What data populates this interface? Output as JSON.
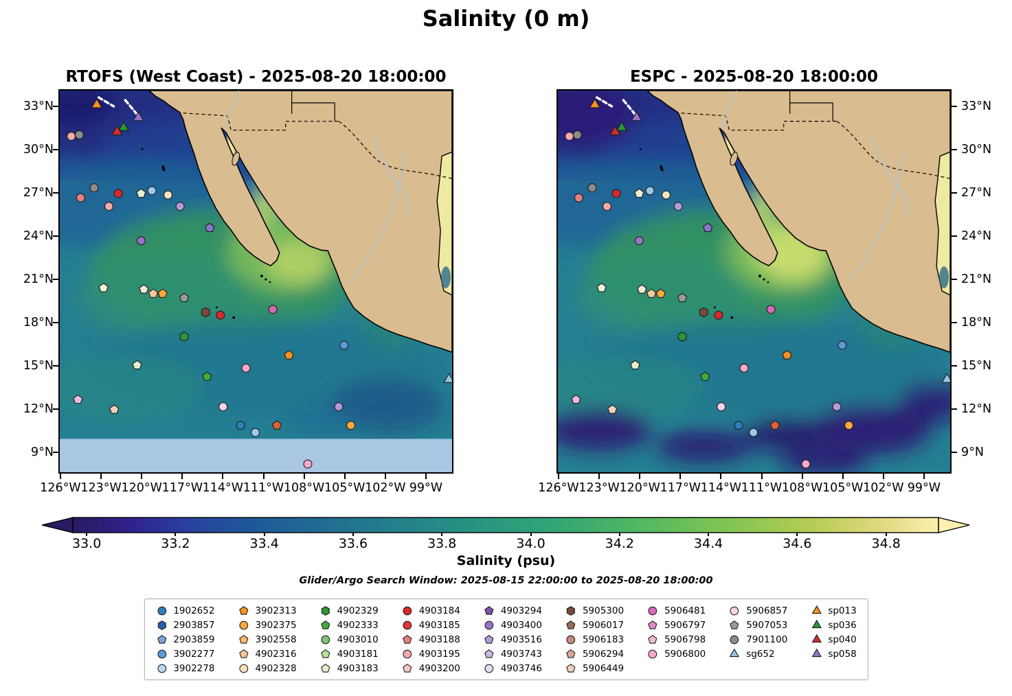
{
  "title": "Salinity (0 m)",
  "panels": [
    {
      "model": "RTOFS",
      "title": "RTOFS (West Coast) - 2025-08-20 18:00:00"
    },
    {
      "model": "ESPC",
      "title": "ESPC - 2025-08-20 18:00:00"
    }
  ],
  "subtitle": "Glider/Argo Search Window: 2025-08-15 22:00:00 to 2025-08-20 18:00:00",
  "axes": {
    "lat_ticks": [
      {
        "label": "33°N",
        "lat": 33
      },
      {
        "label": "30°N",
        "lat": 30
      },
      {
        "label": "27°N",
        "lat": 27
      },
      {
        "label": "24°N",
        "lat": 24
      },
      {
        "label": "21°N",
        "lat": 21
      },
      {
        "label": "18°N",
        "lat": 18
      },
      {
        "label": "15°N",
        "lat": 15
      },
      {
        "label": "12°N",
        "lat": 12
      },
      {
        "label": "9°N",
        "lat": 9
      }
    ],
    "lon_ticks": [
      {
        "label": "126°W",
        "lon": 126
      },
      {
        "label": "123°W",
        "lon": 123
      },
      {
        "label": "120°W",
        "lon": 120
      },
      {
        "label": "117°W",
        "lon": 117
      },
      {
        "label": "114°W",
        "lon": 114
      },
      {
        "label": "111°W",
        "lon": 111
      },
      {
        "label": "108°W",
        "lon": 108
      },
      {
        "label": "105°W",
        "lon": 105
      },
      {
        "label": "102°W",
        "lon": 102
      },
      {
        "label": "99°W",
        "lon": 99
      }
    ]
  },
  "colorbar": {
    "label": "Salinity (psu)",
    "ticks": [
      "33.0",
      "33.2",
      "33.4",
      "33.6",
      "33.8",
      "34.0",
      "34.2",
      "34.4",
      "34.6",
      "34.8"
    ],
    "gradient": [
      [
        0,
        "#2a1a63"
      ],
      [
        0.07,
        "#30228e"
      ],
      [
        0.13,
        "#293f9e"
      ],
      [
        0.2,
        "#1f5699"
      ],
      [
        0.28,
        "#206a92"
      ],
      [
        0.36,
        "#237d8c"
      ],
      [
        0.45,
        "#279083"
      ],
      [
        0.55,
        "#32a476"
      ],
      [
        0.65,
        "#4fb763"
      ],
      [
        0.75,
        "#7fc453"
      ],
      [
        0.85,
        "#b3cc55"
      ],
      [
        0.93,
        "#dfd77d"
      ],
      [
        1,
        "#fdf0b0"
      ]
    ]
  },
  "legend": {
    "columns": [
      [
        {
          "id": "1902652",
          "shape": "circle",
          "color": "#2e7ebc"
        },
        {
          "id": "2903857",
          "shape": "hexagon",
          "color": "#2b5fa8"
        },
        {
          "id": "2903859",
          "shape": "pentagon",
          "color": "#7ba7d4"
        },
        {
          "id": "3902277",
          "shape": "circle",
          "color": "#5b9bd5"
        },
        {
          "id": "3902278",
          "shape": "circle",
          "color": "#bcd8ee"
        }
      ],
      [
        {
          "id": "3902313",
          "shape": "pentagon",
          "color": "#f59120"
        },
        {
          "id": "3902375",
          "shape": "circle",
          "color": "#f9a93a"
        },
        {
          "id": "3902558",
          "shape": "pentagon",
          "color": "#fbb86a"
        },
        {
          "id": "4902316",
          "shape": "pentagon",
          "color": "#f8c89a"
        },
        {
          "id": "4902328",
          "shape": "circle",
          "color": "#f5e3c0"
        }
      ],
      [
        {
          "id": "4902329",
          "shape": "hexagon",
          "color": "#2e9437"
        },
        {
          "id": "4902333",
          "shape": "pentagon",
          "color": "#47a83d"
        },
        {
          "id": "4903010",
          "shape": "circle",
          "color": "#7cc576"
        },
        {
          "id": "4903181",
          "shape": "pentagon",
          "color": "#b4e0a0"
        },
        {
          "id": "4903183",
          "shape": "pentagon",
          "color": "#e4f2c8"
        }
      ],
      [
        {
          "id": "4903184",
          "shape": "circle",
          "color": "#d62a2a"
        },
        {
          "id": "4903185",
          "shape": "circle",
          "color": "#e03535"
        },
        {
          "id": "4903188",
          "shape": "pentagon",
          "color": "#e98080"
        },
        {
          "id": "4903195",
          "shape": "circle",
          "color": "#f4a9a9"
        },
        {
          "id": "4903200",
          "shape": "pentagon",
          "color": "#f8c8c8"
        }
      ],
      [
        {
          "id": "4903294",
          "shape": "pentagon",
          "color": "#7a52a8"
        },
        {
          "id": "4903400",
          "shape": "circle",
          "color": "#9674c4"
        },
        {
          "id": "4903516",
          "shape": "pentagon",
          "color": "#b49ad6"
        },
        {
          "id": "4903743",
          "shape": "pentagon",
          "color": "#cdb8e6"
        },
        {
          "id": "4903746",
          "shape": "circle",
          "color": "#e6d9f2"
        }
      ],
      [
        {
          "id": "5905300",
          "shape": "hexagon",
          "color": "#7a4a3a"
        },
        {
          "id": "5906017",
          "shape": "pentagon",
          "color": "#9a6a55"
        },
        {
          "id": "5906183",
          "shape": "circle",
          "color": "#c48a78"
        },
        {
          "id": "5906294",
          "shape": "pentagon",
          "color": "#d9a898"
        },
        {
          "id": "5906449",
          "shape": "pentagon",
          "color": "#f0d0bc"
        }
      ],
      [
        {
          "id": "5906481",
          "shape": "circle",
          "color": "#d66ab8"
        },
        {
          "id": "5906797",
          "shape": "pentagon",
          "color": "#e08ac8"
        },
        {
          "id": "5906798",
          "shape": "pentagon",
          "color": "#f0b8dc"
        },
        {
          "id": "5906800",
          "shape": "circle",
          "color": "#f8a8cc"
        }
      ],
      [
        {
          "id": "5906857",
          "shape": "circle",
          "color": "#fbd3e6"
        },
        {
          "id": "5907053",
          "shape": "pentagon",
          "color": "#9a9a9a"
        },
        {
          "id": "7901100",
          "shape": "circle",
          "color": "#8c8c8c"
        },
        {
          "id": "sg652",
          "shape": "triangle",
          "color": "#9cc4e4"
        }
      ],
      [
        {
          "id": "sp013",
          "shape": "triangle",
          "color": "#f59120"
        },
        {
          "id": "sp036",
          "shape": "triangle",
          "color": "#2e9437"
        },
        {
          "id": "sp040",
          "shape": "triangle",
          "color": "#d62a2a"
        },
        {
          "id": "sp058",
          "shape": "triangle",
          "color": "#9674c4"
        }
      ]
    ]
  },
  "chart_data": {
    "type": "heatmap",
    "variable": "Salinity",
    "depth": "0 m",
    "units": "psu",
    "valid_time": "2025-08-20 18:00:00",
    "models": [
      "RTOFS (West Coast)",
      "ESPC"
    ],
    "colorbar_range": [
      33.0,
      34.8
    ],
    "lon_range_degW": [
      126,
      97
    ],
    "lat_range_degN": [
      8,
      34
    ],
    "search_window": "2025-08-15 22:00:00 to 2025-08-20 18:00:00",
    "markers": [
      {
        "id": "sp013",
        "lon": 123.4,
        "lat": 33.2,
        "shape": "triangle",
        "color": "#f59120"
      },
      {
        "id": "sp036",
        "lon": 121.4,
        "lat": 31.6,
        "shape": "triangle",
        "color": "#2e9437"
      },
      {
        "id": "sp040",
        "lon": 121.9,
        "lat": 31.3,
        "shape": "triangle",
        "color": "#d62a2a"
      },
      {
        "id": "sp058",
        "lon": 120.3,
        "lat": 32.3,
        "shape": "triangle",
        "color": "#9674c4"
      },
      {
        "id": "sg652",
        "lon": 97.2,
        "lat": 14.0,
        "shape": "triangle",
        "color": "#9cc4e4"
      },
      {
        "lon": 125.3,
        "lat": 31.0,
        "shape": "circle",
        "color": "#f4a9a9"
      },
      {
        "lon": 124.7,
        "lat": 31.1,
        "shape": "circle",
        "color": "#8c8c8c"
      },
      {
        "lon": 123.6,
        "lat": 27.4,
        "shape": "circle",
        "color": "#8c8c8c"
      },
      {
        "lon": 124.6,
        "lat": 26.7,
        "shape": "circle",
        "color": "#e98080"
      },
      {
        "lon": 121.8,
        "lat": 27.0,
        "shape": "circle",
        "color": "#d62a2a"
      },
      {
        "lon": 122.5,
        "lat": 26.1,
        "shape": "circle",
        "color": "#f4a9a9"
      },
      {
        "lon": 120.1,
        "lat": 27.0,
        "shape": "pentagon",
        "color": "#e8f0d4"
      },
      {
        "lon": 119.3,
        "lat": 27.2,
        "shape": "circle",
        "color": "#9cc8e8"
      },
      {
        "lon": 118.1,
        "lat": 26.9,
        "shape": "circle",
        "color": "#f5e3c0"
      },
      {
        "lon": 117.2,
        "lat": 26.1,
        "shape": "circle",
        "color": "#b49ad6"
      },
      {
        "lon": 115.0,
        "lat": 24.6,
        "shape": "pentagon",
        "color": "#8678c8"
      },
      {
        "lon": 120.1,
        "lat": 23.7,
        "shape": "circle",
        "color": "#9674c4"
      },
      {
        "lon": 122.9,
        "lat": 20.4,
        "shape": "pentagon",
        "color": "#eef2d8"
      },
      {
        "lon": 119.9,
        "lat": 20.3,
        "shape": "pentagon",
        "color": "#f0e8d0"
      },
      {
        "lon": 119.2,
        "lat": 20.0,
        "shape": "pentagon",
        "color": "#f8c89a"
      },
      {
        "lon": 118.5,
        "lat": 20.0,
        "shape": "pentagon",
        "color": "#f9a93a"
      },
      {
        "lon": 116.9,
        "lat": 19.7,
        "shape": "pentagon",
        "color": "#9a9a9a"
      },
      {
        "lon": 115.3,
        "lat": 18.7,
        "shape": "hexagon",
        "color": "#7a4a3a"
      },
      {
        "lon": 114.2,
        "lat": 18.5,
        "shape": "circle",
        "color": "#d62a2a"
      },
      {
        "lon": 110.3,
        "lat": 18.9,
        "shape": "circle",
        "color": "#d66ab8"
      },
      {
        "lon": 116.9,
        "lat": 17.0,
        "shape": "hexagon",
        "color": "#2e9437"
      },
      {
        "lon": 105.0,
        "lat": 16.4,
        "shape": "circle",
        "color": "#5b9bd5"
      },
      {
        "lon": 109.1,
        "lat": 15.7,
        "shape": "pentagon",
        "color": "#f59120"
      },
      {
        "lon": 120.4,
        "lat": 15.0,
        "shape": "pentagon",
        "color": "#e8eecc"
      },
      {
        "lon": 112.3,
        "lat": 14.8,
        "shape": "circle",
        "color": "#f8a8cc"
      },
      {
        "lon": 115.2,
        "lat": 14.2,
        "shape": "pentagon",
        "color": "#47a83d"
      },
      {
        "lon": 124.8,
        "lat": 12.6,
        "shape": "pentagon",
        "color": "#f0b8dc"
      },
      {
        "lon": 122.1,
        "lat": 11.9,
        "shape": "pentagon",
        "color": "#f0d0bc"
      },
      {
        "lon": 114.0,
        "lat": 12.1,
        "shape": "circle",
        "color": "#fbd3e6"
      },
      {
        "lon": 105.4,
        "lat": 12.1,
        "shape": "circle",
        "color": "#b49ad6"
      },
      {
        "lon": 112.7,
        "lat": 10.8,
        "shape": "circle",
        "color": "#2e7ebc"
      },
      {
        "lon": 111.6,
        "lat": 10.3,
        "shape": "circle",
        "color": "#9cc8e8"
      },
      {
        "lon": 110.0,
        "lat": 10.8,
        "shape": "pentagon",
        "color": "#e06038"
      },
      {
        "lon": 104.5,
        "lat": 10.8,
        "shape": "circle",
        "color": "#f9a93a"
      },
      {
        "lon": 107.7,
        "lat": 8.1,
        "shape": "circle",
        "color": "#f8a8cc"
      }
    ]
  }
}
